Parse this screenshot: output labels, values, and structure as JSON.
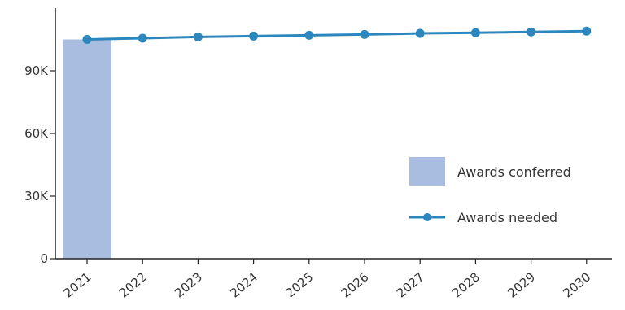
{
  "chart_data": {
    "type": "bar",
    "categories": [
      "2021",
      "2022",
      "2023",
      "2024",
      "2025",
      "2026",
      "2027",
      "2028",
      "2029",
      "2030"
    ],
    "series": [
      {
        "name": "Awards conferred",
        "type": "bar",
        "color": "#a8bddf",
        "values": [
          105000,
          null,
          null,
          null,
          null,
          null,
          null,
          null,
          null,
          null
        ]
      },
      {
        "name": "Awards needed",
        "type": "line",
        "color": "#2b87bd",
        "values": [
          105000,
          105600,
          106200,
          106600,
          107000,
          107400,
          107900,
          108200,
          108600,
          109000
        ]
      }
    ],
    "y_ticks": [
      {
        "value": 0,
        "label": "0"
      },
      {
        "value": 30000,
        "label": "30K"
      },
      {
        "value": 60000,
        "label": "60K"
      },
      {
        "value": 90000,
        "label": "90K"
      }
    ],
    "ylim": [
      0,
      120000
    ],
    "grid": false,
    "legend_position": "bottom-right"
  }
}
